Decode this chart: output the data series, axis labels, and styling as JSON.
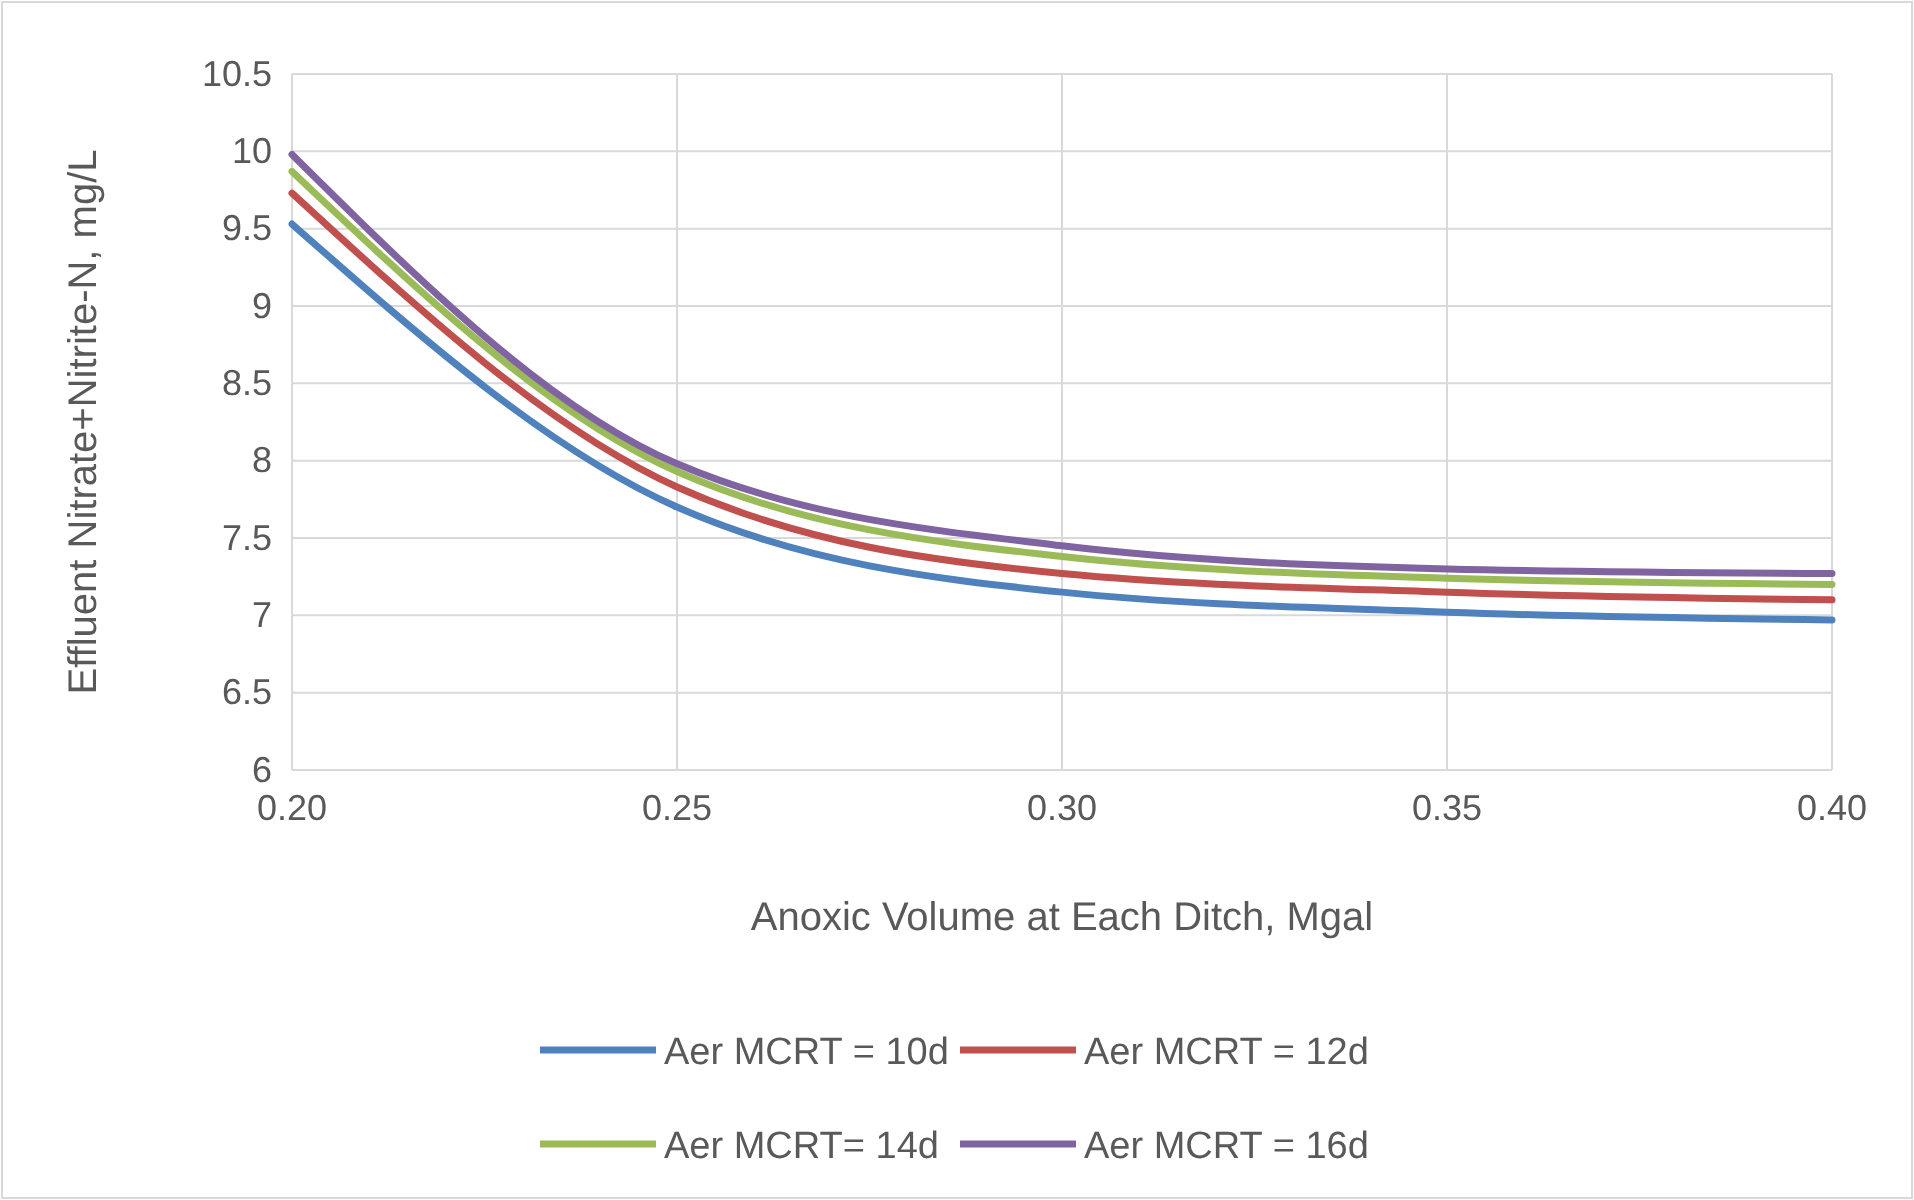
{
  "chart_data": {
    "type": "line",
    "xlabel": "Anoxic Volume at Each Ditch, Mgal",
    "ylabel": "Effluent Nitrate+Nitrite-N, mg/L",
    "x": [
      0.2,
      0.25,
      0.3,
      0.35,
      0.4
    ],
    "xlim": [
      0.2,
      0.4
    ],
    "xticks": [
      {
        "value": 0.2,
        "label": "0.20"
      },
      {
        "value": 0.25,
        "label": "0.25"
      },
      {
        "value": 0.3,
        "label": "0.30"
      },
      {
        "value": 0.35,
        "label": "0.35"
      },
      {
        "value": 0.4,
        "label": "0.40"
      }
    ],
    "ylim": [
      6,
      10.5
    ],
    "yticks": [
      6,
      6.5,
      7,
      7.5,
      8,
      8.5,
      9,
      9.5,
      10,
      10.5
    ],
    "grid": true,
    "legend": "bottom",
    "marker": "none",
    "line_style": "solid",
    "series": [
      {
        "name": "Aer MCRT = 10d",
        "color": "#4f81bd",
        "values": [
          9.53,
          7.7,
          7.15,
          7.02,
          6.97
        ]
      },
      {
        "name": "Aer MCRT = 12d",
        "color": "#c0504d",
        "values": [
          9.73,
          7.83,
          7.27,
          7.15,
          7.1
        ]
      },
      {
        "name": "Aer MCRT= 14d",
        "color": "#9bbb59",
        "values": [
          9.87,
          7.93,
          7.38,
          7.24,
          7.2
        ]
      },
      {
        "name": "Aer MCRT = 16d",
        "color": "#8064a2",
        "values": [
          9.98,
          7.98,
          7.45,
          7.3,
          7.27
        ]
      }
    ]
  }
}
